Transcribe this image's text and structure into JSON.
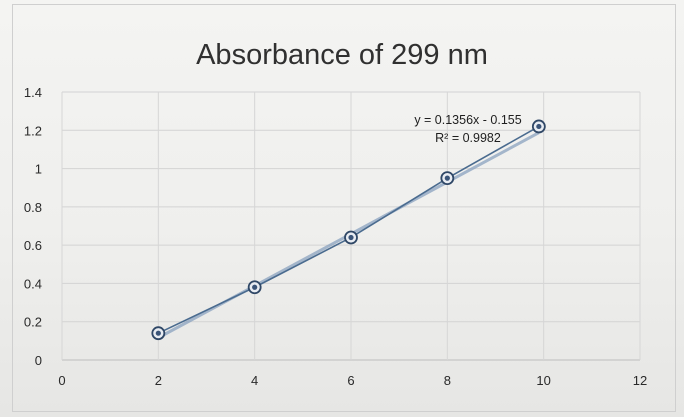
{
  "chart_data": {
    "type": "scatter",
    "title": "Absorbance of 299 nm",
    "xlabel": "",
    "ylabel": "",
    "xlim": [
      0,
      12
    ],
    "ylim": [
      0,
      1.4
    ],
    "x_ticks": [
      "0",
      "2",
      "4",
      "6",
      "8",
      "10",
      "12"
    ],
    "y_ticks": [
      "0",
      "0.2",
      "0.4",
      "0.6",
      "0.8",
      "1",
      "1.2",
      "1.4"
    ],
    "grid": true,
    "legend": "none",
    "series": [
      {
        "x": [
          2,
          4,
          6,
          8,
          9.9
        ],
        "y": [
          0.14,
          0.38,
          0.64,
          0.95,
          1.22
        ],
        "color": "#4a6b8f",
        "marker": "circle",
        "connect": true
      }
    ],
    "trendline": {
      "type": "linear",
      "slope": 0.1356,
      "intercept": -0.155,
      "x_range": [
        2,
        9.9
      ],
      "color": "#8aa2bf"
    },
    "annotations": {
      "equation": "y = 0.1356x - 0.155",
      "r_squared": "R² = 0.9982"
    }
  }
}
